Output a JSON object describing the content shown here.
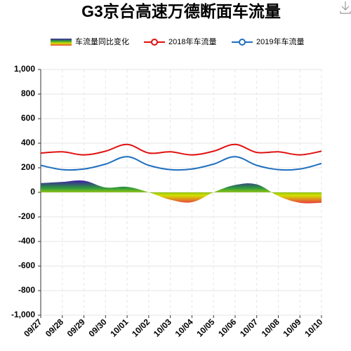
{
  "chart_data": {
    "type": "line",
    "title": "G3京台高速万德断面车流量",
    "categories": [
      "09/27",
      "09/28",
      "09/29",
      "09/30",
      "10/01",
      "10/02",
      "10/03",
      "10/04",
      "10/05",
      "10/06",
      "10/07",
      "10/08",
      "10/09",
      "10/10"
    ],
    "series": [
      {
        "name": "车流量同比变化",
        "kind": "area",
        "colors": [
          "#3b1fa3",
          "#2f9a3c",
          "#d4e000",
          "#e8453c"
        ],
        "values": [
          75,
          85,
          95,
          40,
          45,
          0,
          -60,
          -80,
          0,
          60,
          65,
          -30,
          -85,
          -85
        ]
      },
      {
        "name": "2018年车流量",
        "color": "#e01010",
        "values": [
          320,
          330,
          305,
          335,
          390,
          320,
          330,
          305,
          335,
          390,
          325,
          330,
          305,
          335
        ]
      },
      {
        "name": "2019年车流量",
        "color": "#1f6fbf",
        "values": [
          220,
          185,
          190,
          230,
          290,
          220,
          185,
          190,
          230,
          290,
          220,
          185,
          190,
          235
        ]
      }
    ],
    "ylim": [
      -1000,
      1000
    ],
    "yticks": [
      {
        "value": -1000,
        "label": "-1,000"
      },
      -800,
      -600,
      -400,
      -200,
      0,
      200,
      400,
      600,
      800,
      {
        "value": 1000,
        "label": "1,000"
      }
    ],
    "grid": true
  }
}
